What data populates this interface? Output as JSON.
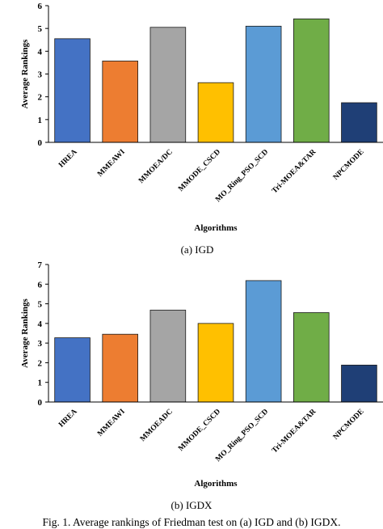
{
  "colors": {
    "HREA": "#4472c4",
    "MMEAWI": "#ed7d31",
    "MMOEA": "#a5a5a5",
    "MMODE_CSCD": "#ffc000",
    "MO_Ring_PSO_SCD": "#5b9bd5",
    "Tri-MOEA&TAR": "#70ad47",
    "NPCMODE": "#1f3f76"
  },
  "chart_data": [
    {
      "type": "bar",
      "categories": [
        "HREA",
        "MMEAWI",
        "MMOEA/DC",
        "MMODE_CSCD",
        "MO_Ring_PSO_SCD",
        "Tri-MOEA&TAR",
        "NPCMODE"
      ],
      "values": [
        4.55,
        3.57,
        5.05,
        2.62,
        5.1,
        5.42,
        1.74
      ],
      "xlabel": "Algorithms",
      "ylabel": "Average Rankings",
      "ylim": [
        0,
        6
      ],
      "yticks": [
        0,
        1,
        2,
        3,
        4,
        5,
        6
      ],
      "grid": false,
      "caption": "(a)  IGD"
    },
    {
      "type": "bar",
      "categories": [
        "HREA",
        "MMEAWI",
        "MMOEADC",
        "MMODE_CSCD",
        "MO_Ring_PSO_SCD",
        "Tri-MOEA&TAR",
        "NPCMODE"
      ],
      "values": [
        3.27,
        3.45,
        4.68,
        4.0,
        6.18,
        4.55,
        1.88
      ],
      "xlabel": "Algorithms",
      "ylabel": "Average Rankings",
      "ylim": [
        0,
        7
      ],
      "yticks": [
        0,
        1,
        2,
        3,
        4,
        5,
        6,
        7
      ],
      "grid": false,
      "caption": "(b)  IGDX"
    }
  ],
  "figure_caption": "Fig. 1.   Average rankings of Friedman test on (a) IGD and (b) IGDX."
}
